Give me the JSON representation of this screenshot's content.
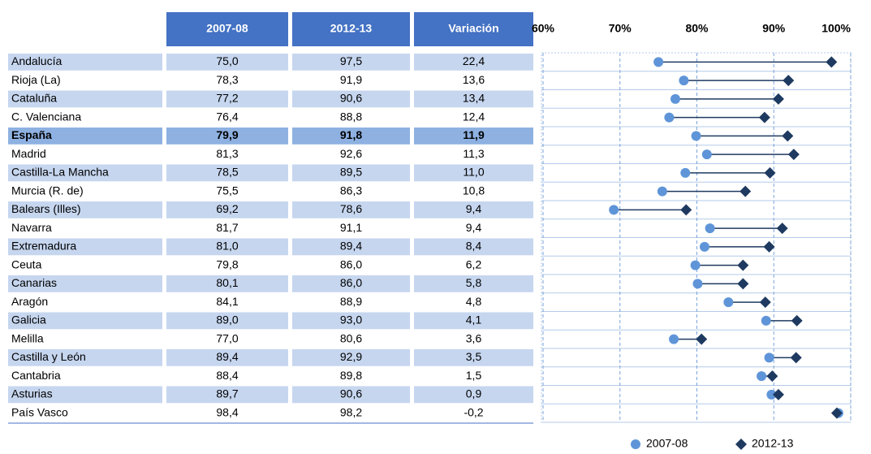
{
  "chart_data": {
    "type": "dumbbell",
    "categories": [
      "Andalucía",
      "Rioja (La)",
      "Cataluña",
      "C. Valenciana",
      "España",
      "Madrid",
      "Castilla-La Mancha",
      "Murcia (R. de)",
      "Balears (Illes)",
      "Navarra",
      "Extremadura",
      "Ceuta",
      "Canarias",
      "Aragón",
      "Galicia",
      "Melilla",
      "Castilla y León",
      "Cantabria",
      "Asturias",
      "País Vasco"
    ],
    "highlight": 4,
    "series": [
      {
        "name": "2007-08",
        "color": "#5f95d8",
        "marker": "circle",
        "values": [
          75.0,
          78.3,
          77.2,
          76.4,
          79.9,
          81.3,
          78.5,
          75.5,
          69.2,
          81.7,
          81.0,
          79.8,
          80.1,
          84.1,
          89.0,
          77.0,
          89.4,
          88.4,
          89.7,
          98.4
        ],
        "value_labels": [
          "75,0",
          "78,3",
          "77,2",
          "76,4",
          "79,9",
          "81,3",
          "78,5",
          "75,5",
          "69,2",
          "81,7",
          "81,0",
          "79,8",
          "80,1",
          "84,1",
          "89,0",
          "77,0",
          "89,4",
          "88,4",
          "89,7",
          "98,4"
        ]
      },
      {
        "name": "2012-13",
        "color": "#1f3a60",
        "marker": "diamond",
        "values": [
          97.5,
          91.9,
          90.6,
          88.8,
          91.8,
          92.6,
          89.5,
          86.3,
          78.6,
          91.1,
          89.4,
          86.0,
          86.0,
          88.9,
          93.0,
          80.6,
          92.9,
          89.8,
          90.6,
          98.2
        ],
        "value_labels": [
          "97,5",
          "91,9",
          "90,6",
          "88,8",
          "91,8",
          "92,6",
          "89,5",
          "86,3",
          "78,6",
          "91,1",
          "89,4",
          "86,0",
          "86,0",
          "88,9",
          "93,0",
          "80,6",
          "92,9",
          "89,8",
          "90,6",
          "98,2"
        ]
      },
      {
        "name": "Variación",
        "values": [
          22.4,
          13.6,
          13.4,
          12.4,
          11.9,
          11.3,
          11.0,
          10.8,
          9.4,
          9.4,
          8.4,
          6.2,
          5.8,
          4.8,
          4.1,
          3.6,
          3.5,
          1.5,
          0.9,
          -0.2
        ],
        "value_labels": [
          "22,4",
          "13,6",
          "13,4",
          "12,4",
          "11,9",
          "11,3",
          "11,0",
          "10,8",
          "9,4",
          "9,4",
          "8,4",
          "6,2",
          "5,8",
          "4,8",
          "4,1",
          "3,6",
          "3,5",
          "1,5",
          "0,9",
          "-0,2"
        ]
      }
    ],
    "xlim": [
      60,
      100
    ],
    "xticks": [
      {
        "value": 60,
        "label": "60%"
      },
      {
        "value": 70,
        "label": "70%"
      },
      {
        "value": 80,
        "label": "80%"
      },
      {
        "value": 90,
        "label": "90%"
      },
      {
        "value": 100,
        "label": "100%"
      }
    ],
    "grid": true
  }
}
